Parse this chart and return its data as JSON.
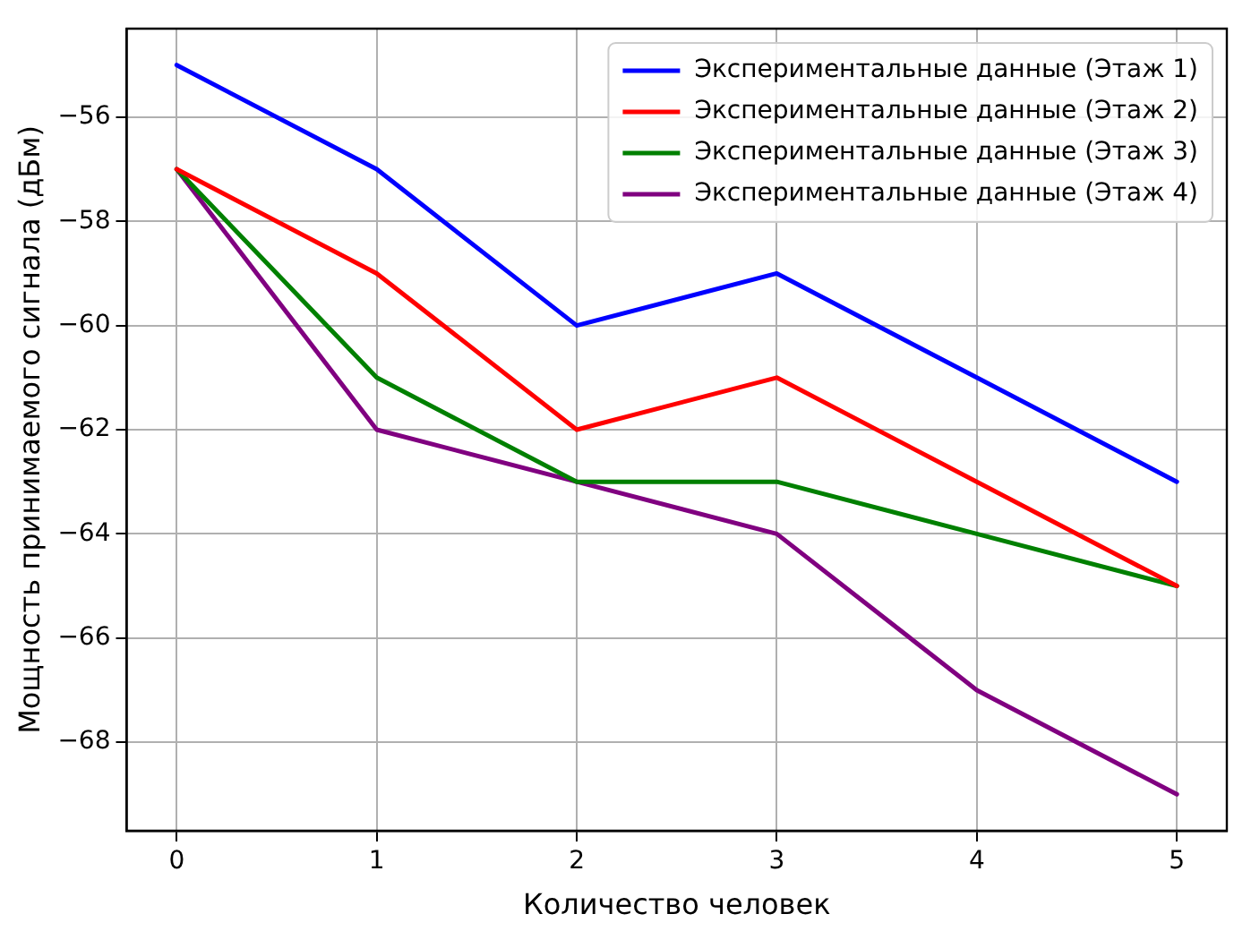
{
  "chart_data": {
    "type": "line",
    "xlabel": "Количество человек",
    "ylabel": "Мощность принимаемого сигнала (дБм)",
    "x": [
      0,
      1,
      2,
      3,
      4,
      5
    ],
    "xlim": [
      -0.25,
      5.25
    ],
    "xticks": [
      0,
      1,
      2,
      3,
      4,
      5
    ],
    "ylim": [
      -69.7,
      -54.3
    ],
    "yticks": [
      -68,
      -66,
      -64,
      -62,
      -60,
      -58,
      -56
    ],
    "grid": true,
    "legend": "top right",
    "marker": "none",
    "line_style": "solid",
    "series": [
      {
        "name": "Экспериментальные данные (Этаж 1)",
        "color": "#0000ff",
        "values": [
          -55,
          -57,
          -60,
          -59,
          -61,
          -63
        ]
      },
      {
        "name": "Экспериментальные данные (Этаж 2)",
        "color": "#ff0000",
        "values": [
          -57,
          -59,
          -62,
          -61,
          -63,
          -65
        ]
      },
      {
        "name": "Экспериментальные данные (Этаж 3)",
        "color": "#008000",
        "values": [
          -57,
          -61,
          -63,
          -63,
          -64,
          -65
        ]
      },
      {
        "name": "Экспериментальные данные (Этаж 4)",
        "color": "#800080",
        "values": [
          -57,
          -62,
          -63,
          -64,
          -67,
          -69
        ]
      }
    ]
  }
}
